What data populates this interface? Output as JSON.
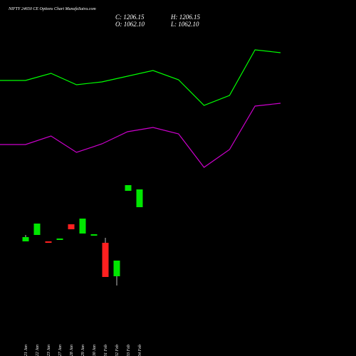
{
  "chart_data": {
    "type": "candlestick",
    "title": "NIFTY 24650  CE Options  Chart MunafaSutra.com",
    "ohlc_labels": [
      "C: 1206.15",
      "H: 1206.15",
      "O: 1062.10",
      "L: 1062.10"
    ],
    "categories": [
      "21 Jan",
      "22 Jan",
      "23 Jan",
      "27 Jan",
      "28 Jan",
      "29 Jan",
      "30 Jan",
      "01 Feb",
      "02 Feb",
      "03 Feb",
      "04 Feb"
    ],
    "open": [
      161,
      170,
      161,
      163,
      185,
      172,
      169,
      159,
      112,
      232,
      209
    ],
    "high": [
      170,
      186,
      161,
      165,
      185,
      193,
      171,
      166,
      134,
      240,
      234
    ],
    "low": [
      161,
      170,
      159,
      163,
      178,
      172,
      169,
      111,
      99,
      232,
      209
    ],
    "close": [
      167,
      186,
      159,
      165,
      178,
      193,
      171,
      111,
      134,
      240,
      234
    ],
    "up_color": "#00e600",
    "down_color": "#ff2020",
    "lines": [
      {
        "color": "#00ff00",
        "x": [
          0,
          1,
          2,
          3,
          4,
          5,
          6,
          7,
          8,
          9,
          10,
          11
        ],
        "values": [
          387,
          387,
          397,
          381,
          385,
          393,
          401,
          388,
          352,
          366,
          430,
          426
        ]
      },
      {
        "color": "#cc00cc",
        "x": [
          0,
          1,
          2,
          3,
          4,
          5,
          6,
          7,
          8,
          9,
          10,
          11
        ],
        "values": [
          297,
          297,
          309,
          286,
          298,
          315,
          321,
          312,
          265,
          290,
          351,
          355
        ]
      }
    ],
    "xlim": [
      0,
      11
    ],
    "ylim": [
      0,
      500
    ]
  }
}
